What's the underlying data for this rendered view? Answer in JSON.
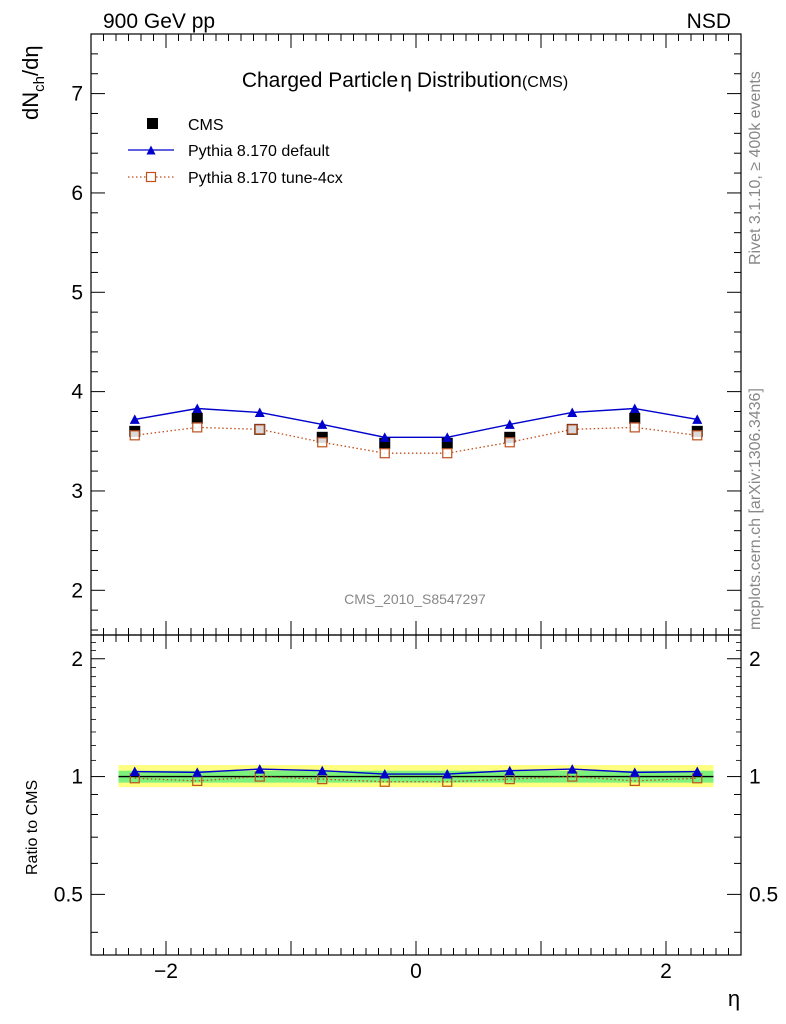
{
  "header": {
    "left": "900 GeV pp",
    "right": "NSD"
  },
  "side_text": {
    "upper": "Rivet 3.1.10, ≥ 400k events",
    "lower": "mcplots.cern.ch [arXiv:1306.3436]"
  },
  "watermark": "CMS_2010_S8547297",
  "colors": {
    "cms": "#000000",
    "default": "#0000cc",
    "tune": "#c0501c",
    "band_inner": "#7cf27c",
    "band_outer": "#ffff80"
  },
  "chart_data": [
    {
      "type": "scatter",
      "title": "Charged Particle",
      "title_symbol": "η",
      "title_rest": "Distribution",
      "title_suffix": "(CMS)",
      "ylabel_main": "dN",
      "ylabel_sub": "ch",
      "ylabel_tail": "/dη",
      "xlabel": "η",
      "xlim": [
        -2.6,
        2.6
      ],
      "ylim": [
        1.55,
        7.6
      ],
      "yticks": [
        "2",
        "3",
        "4",
        "5",
        "6",
        "7"
      ],
      "x": [
        -2.25,
        -1.75,
        -1.25,
        -0.75,
        -0.25,
        0.25,
        0.75,
        1.25,
        1.75,
        2.25
      ],
      "series": [
        {
          "name": "CMS",
          "style": "marker",
          "values": [
            3.6,
            3.73,
            3.62,
            3.54,
            3.48,
            3.48,
            3.54,
            3.62,
            3.73,
            3.6
          ]
        },
        {
          "name": "Pythia 8.170 default",
          "style": "line",
          "values": [
            3.72,
            3.83,
            3.79,
            3.67,
            3.54,
            3.54,
            3.67,
            3.79,
            3.83,
            3.72
          ]
        },
        {
          "name": "Pythia 8.170 tune-4cx",
          "style": "dotted",
          "values": [
            3.56,
            3.64,
            3.62,
            3.49,
            3.38,
            3.38,
            3.49,
            3.62,
            3.64,
            3.56
          ]
        }
      ]
    },
    {
      "type": "line",
      "ylabel": "Ratio to CMS",
      "xlabel": "η",
      "xlim": [
        -2.6,
        2.6
      ],
      "ylim": [
        0.35,
        2.3
      ],
      "yticks_labeled": [
        "0.5",
        "1",
        "2"
      ],
      "xticks": [
        "−2",
        "0",
        "2"
      ],
      "x": [
        -2.25,
        -1.75,
        -1.25,
        -0.75,
        -0.25,
        0.25,
        0.75,
        1.25,
        1.75,
        2.25
      ],
      "band_inner": [
        0.965,
        1.035
      ],
      "band_outer": [
        0.94,
        1.07
      ],
      "series": [
        {
          "name": "Pythia 8.170 default",
          "values": [
            1.03,
            1.025,
            1.045,
            1.035,
            1.015,
            1.015,
            1.035,
            1.045,
            1.025,
            1.03
          ]
        },
        {
          "name": "Pythia 8.170 tune-4cx",
          "values": [
            0.99,
            0.975,
            1.0,
            0.985,
            0.97,
            0.97,
            0.985,
            1.0,
            0.975,
            0.99
          ]
        }
      ]
    }
  ]
}
